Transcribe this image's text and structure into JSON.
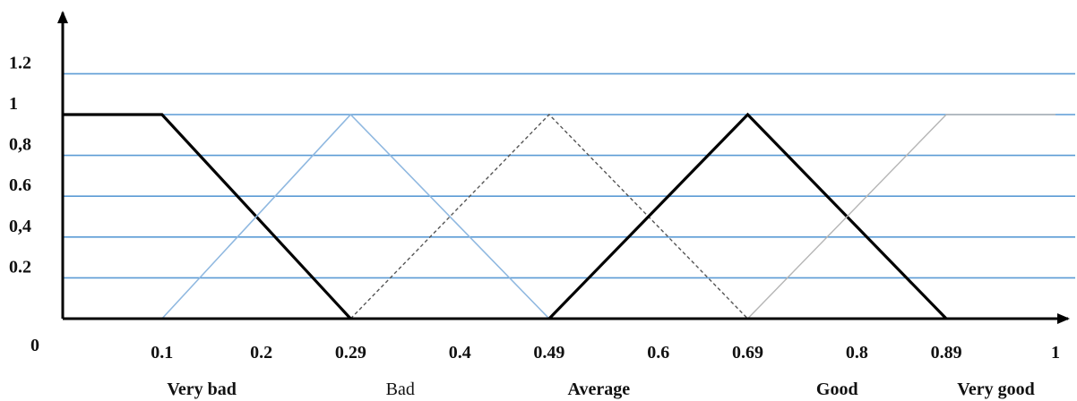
{
  "chart_data": {
    "type": "line",
    "title": "",
    "xlabel": "",
    "ylabel": "",
    "xlim": [
      0,
      1
    ],
    "ylim": [
      0,
      1.3
    ],
    "origin_label": "0",
    "x_ticks": [
      {
        "value": 0.1,
        "label": "0.1"
      },
      {
        "value": 0.2,
        "label": "0.2"
      },
      {
        "value": 0.29,
        "label": "0.29"
      },
      {
        "value": 0.4,
        "label": "0.4"
      },
      {
        "value": 0.49,
        "label": "0.49"
      },
      {
        "value": 0.6,
        "label": "0.6"
      },
      {
        "value": 0.69,
        "label": "0.69"
      },
      {
        "value": 0.8,
        "label": "0.8"
      },
      {
        "value": 0.89,
        "label": "0.89"
      },
      {
        "value": 1,
        "label": "1"
      }
    ],
    "y_ticks": [
      {
        "value": 0.2,
        "label": "0.2"
      },
      {
        "value": 0.4,
        "label": "0,4"
      },
      {
        "value": 0.6,
        "label": "0.6"
      },
      {
        "value": 0.8,
        "label": "0,8"
      },
      {
        "value": 1.0,
        "label": "1"
      },
      {
        "value": 1.2,
        "label": "1.2"
      }
    ],
    "gridlines_y": [
      0.2,
      0.4,
      0.6,
      0.8,
      1.0,
      1.2
    ],
    "grid": true,
    "grid_color": "#5b9bd5",
    "segment_labels": [
      {
        "text": "Very bad",
        "x": 0.14,
        "bold": true
      },
      {
        "text": "Bad",
        "x": 0.34,
        "bold": false
      },
      {
        "text": "Average",
        "x": 0.54,
        "bold": true
      },
      {
        "text": "Good",
        "x": 0.78,
        "bold": true
      },
      {
        "text": "Very good",
        "x": 0.94,
        "bold": true
      }
    ],
    "series": [
      {
        "style": "solid-black-thick",
        "color": "#000000",
        "points": [
          [
            0,
            1
          ],
          [
            0.1,
            1
          ],
          [
            0.29,
            0
          ]
        ]
      },
      {
        "style": "solid-lightblue",
        "color": "#8fb8e0",
        "points": [
          [
            0.1,
            0
          ],
          [
            0.29,
            1
          ],
          [
            0.49,
            0
          ]
        ]
      },
      {
        "style": "dashed-gray",
        "color": "#555555",
        "points": [
          [
            0.29,
            0
          ],
          [
            0.49,
            1
          ],
          [
            0.69,
            0
          ]
        ]
      },
      {
        "style": "solid-black-thick",
        "color": "#000000",
        "points": [
          [
            0.49,
            0
          ],
          [
            0.69,
            1
          ],
          [
            0.89,
            0
          ]
        ]
      },
      {
        "style": "solid-lightgray",
        "color": "#b5b5b5",
        "points": [
          [
            0.69,
            0
          ],
          [
            0.89,
            1
          ],
          [
            1,
            1
          ]
        ]
      }
    ]
  }
}
